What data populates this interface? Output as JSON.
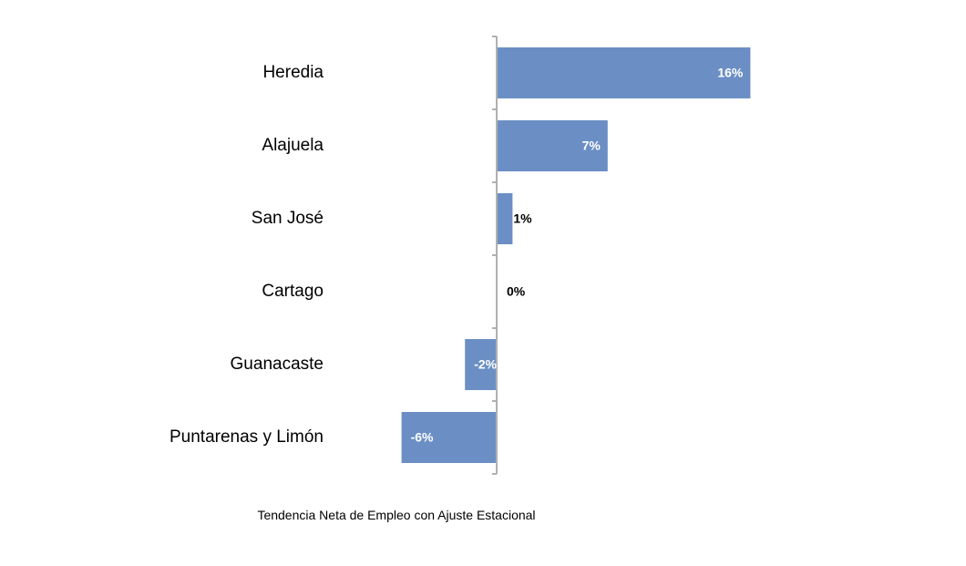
{
  "chart_data": {
    "type": "bar",
    "orientation": "horizontal",
    "categories": [
      "Heredia",
      "Alajuela",
      "San José",
      "Cartago",
      "Guanacaste",
      "Puntarenas y Limón"
    ],
    "values": [
      16,
      7,
      1,
      0,
      -2,
      -6
    ],
    "data_labels": [
      "16%",
      "7%",
      "1%",
      "0%",
      "-2%",
      "-6%"
    ],
    "xlabel": "Tendencia Neta de Empleo con Ajuste Estacional",
    "ylabel": "",
    "xlim": [
      -6.2,
      16
    ],
    "grid": false,
    "legend": "none",
    "bar_color": "#6b8fc4",
    "axis_color": "#b0b0b0",
    "label_inside_color": "#ffffff",
    "label_outside_color": "#000000"
  }
}
